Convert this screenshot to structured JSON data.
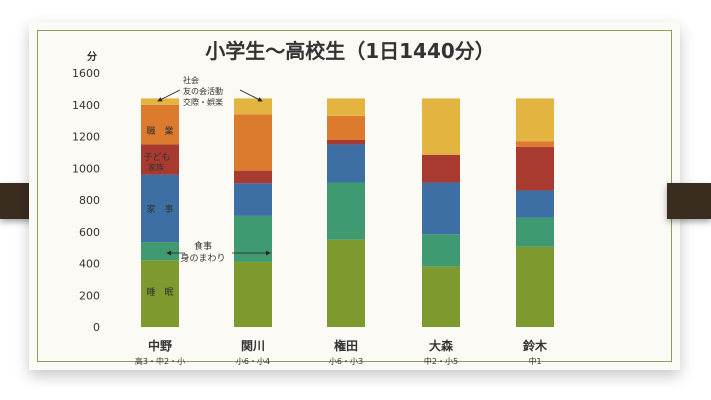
{
  "chart_data": {
    "type": "bar",
    "stacked": true,
    "title": "小学生～高校生（1日1440分）",
    "ylabel": "分",
    "ylim": [
      0,
      1600
    ],
    "yticks": [
      0,
      200,
      400,
      600,
      800,
      1000,
      1200,
      1400,
      1600
    ],
    "grid": false,
    "categories": [
      "中野",
      "関川",
      "権田",
      "大森",
      "鈴木"
    ],
    "category_sublabels": [
      "高3・中2・小",
      "小6・小4",
      "小6・小3",
      "中2・小5",
      "中1"
    ],
    "series": [
      {
        "name": "睡眠",
        "color": "#7e9a2e",
        "values": [
          420,
          410,
          550,
          380,
          505
        ]
      },
      {
        "name": "食事 身のまわり",
        "color": "#3f9a72",
        "values": [
          115,
          290,
          360,
          205,
          185
        ]
      },
      {
        "name": "家事",
        "color": "#3d6fa5",
        "values": [
          425,
          205,
          240,
          325,
          170
        ]
      },
      {
        "name": "子ども 家族",
        "color": "#a93a2f",
        "values": [
          190,
          80,
          30,
          175,
          275
        ]
      },
      {
        "name": "職業",
        "color": "#dc7a2e",
        "values": [
          250,
          355,
          150,
          0,
          35
        ]
      },
      {
        "name": "社会 友の会活動 交際・娯楽",
        "color": "#e3b540",
        "values": [
          40,
          100,
          110,
          355,
          270
        ]
      }
    ]
  },
  "annotations": {
    "sleep": "睡　眠",
    "meal_line1": "食事",
    "meal_line2": "身のまわり",
    "housework": "家　事",
    "family_line1": "子ども",
    "family_line2": "家族",
    "job": "職　業",
    "social_line1": "社会",
    "social_line2": "友の会活動",
    "social_line3": "交際・娯楽"
  }
}
